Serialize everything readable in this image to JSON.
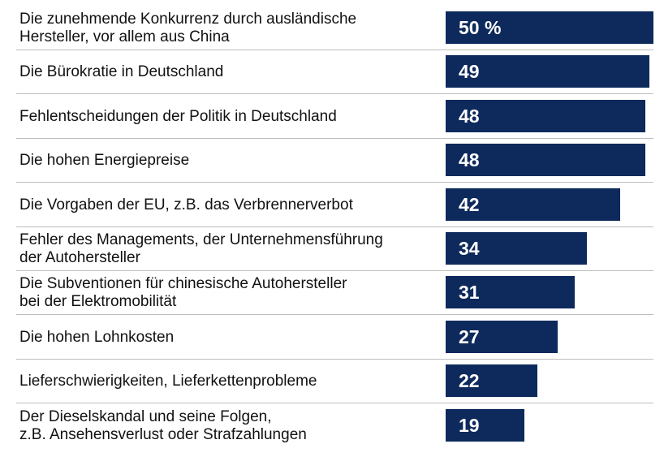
{
  "chart_data": {
    "type": "bar",
    "orientation": "horizontal",
    "color": "#0e2a5c",
    "categories": [
      "Die zunehmende Konkurrenz durch ausländische\nHersteller, vor allem aus China",
      "Die Bürokratie in Deutschland",
      "Fehlentscheidungen der Politik in Deutschland",
      "Die hohen Energiepreise",
      "Die Vorgaben der EU, z.B. das Verbrennerverbot",
      "Fehler des Managements, der Unternehmensführung\nder Autohersteller",
      "Die Subventionen für chinesische Autohersteller\nbei der Elektromobilität",
      "Die hohen Lohnkosten",
      "Lieferschwierigkeiten, Lieferkettenprobleme",
      "Der Dieselskandal und seine Folgen,\nz.B. Ansehensverlust oder Strafzahlungen"
    ],
    "values": [
      50,
      49,
      48,
      48,
      42,
      34,
      31,
      27,
      22,
      19
    ],
    "value_labels": [
      "50 %",
      "49",
      "48",
      "48",
      "42",
      "34",
      "31",
      "27",
      "22",
      "19"
    ]
  }
}
